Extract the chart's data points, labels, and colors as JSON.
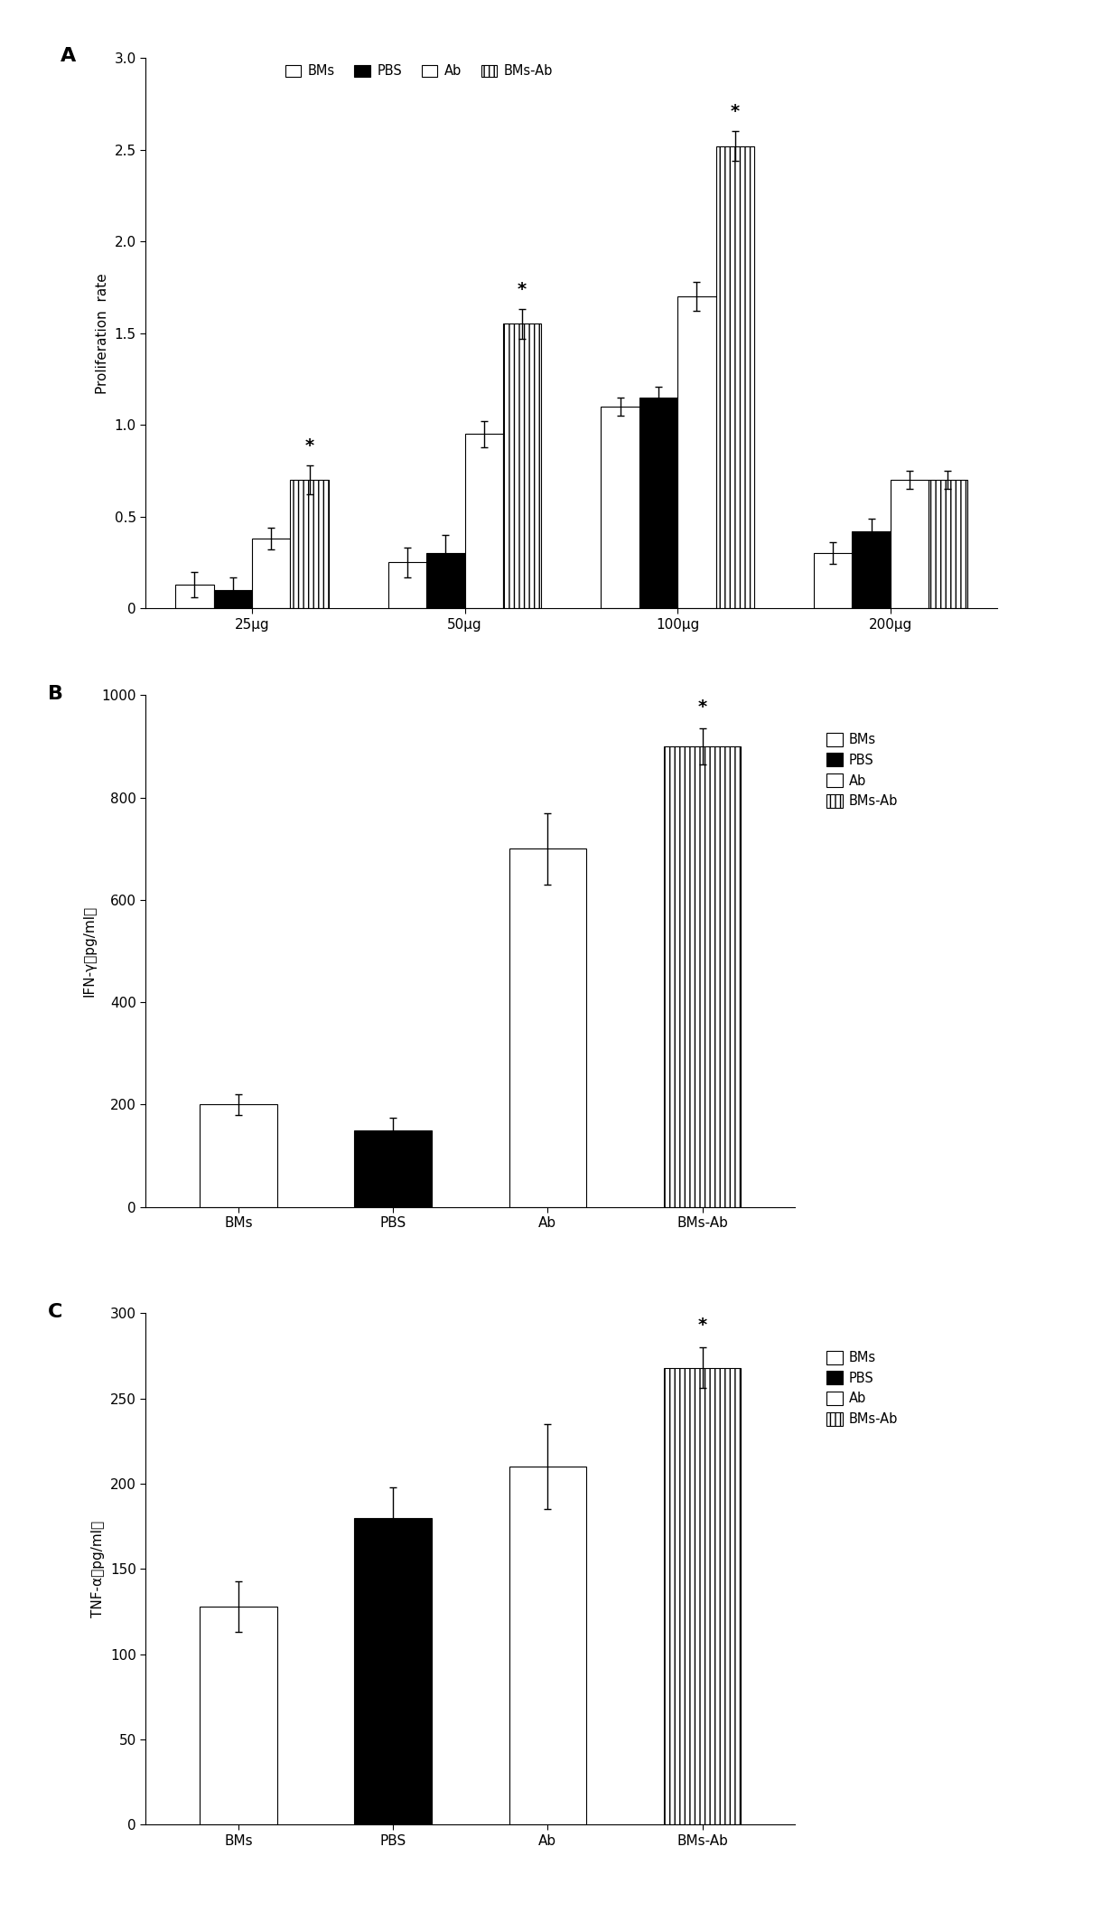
{
  "panel_A": {
    "groups": [
      "25μg",
      "50μg",
      "100μg",
      "200μg"
    ],
    "series": [
      "BMs",
      "PBS",
      "Ab",
      "BMs-Ab"
    ],
    "values_by_group": [
      [
        0.13,
        0.1,
        0.38,
        0.7
      ],
      [
        0.25,
        0.3,
        0.95,
        1.55
      ],
      [
        1.1,
        1.15,
        1.7,
        2.52
      ],
      [
        0.3,
        0.42,
        0.7,
        0.7
      ]
    ],
    "errors_by_group": [
      [
        0.07,
        0.07,
        0.06,
        0.08
      ],
      [
        0.08,
        0.1,
        0.07,
        0.08
      ],
      [
        0.05,
        0.06,
        0.08,
        0.08
      ],
      [
        0.06,
        0.07,
        0.05,
        0.05
      ]
    ],
    "star_groups": [
      0,
      1,
      2
    ],
    "star_series_idx": 3,
    "ylabel": "Proliferation  rate",
    "ylim": [
      0,
      3.0
    ],
    "yticks": [
      0,
      0.5,
      1.0,
      1.5,
      2.0,
      2.5,
      3.0
    ],
    "colors": [
      "white",
      "black",
      "white",
      "white"
    ],
    "hatches": [
      "",
      "",
      "",
      "|||"
    ],
    "label": "A"
  },
  "panel_B": {
    "groups": [
      "BMs",
      "PBS",
      "Ab",
      "BMs-Ab"
    ],
    "values": [
      200,
      150,
      700,
      900
    ],
    "errors": [
      20,
      25,
      70,
      35
    ],
    "star_idx": 3,
    "ylabel": "IFN-γ（pg/ml）",
    "ylim": [
      0,
      1000
    ],
    "yticks": [
      0,
      200,
      400,
      600,
      800,
      1000
    ],
    "colors": [
      "white",
      "black",
      "white",
      "white"
    ],
    "hatches": [
      "",
      "",
      "",
      "|||"
    ],
    "legend_labels": [
      "BMs",
      "PBS",
      "Ab",
      "BMs-Ab"
    ],
    "legend_colors": [
      "white",
      "black",
      "white",
      "white"
    ],
    "legend_hatches": [
      "",
      "",
      "",
      "|||"
    ],
    "label": "B"
  },
  "panel_C": {
    "groups": [
      "BMs",
      "PBS",
      "Ab",
      "BMs-Ab"
    ],
    "values": [
      128,
      180,
      210,
      268
    ],
    "errors": [
      15,
      18,
      25,
      12
    ],
    "star_idx": 3,
    "ylabel": "TNF-α（pg/ml）",
    "ylim": [
      0,
      300
    ],
    "yticks": [
      0,
      50,
      100,
      150,
      200,
      250,
      300
    ],
    "colors": [
      "white",
      "black",
      "white",
      "white"
    ],
    "hatches": [
      "",
      "",
      "",
      "|||"
    ],
    "legend_labels": [
      "BMs",
      "PBS",
      "Ab",
      "BMs-Ab"
    ],
    "legend_colors": [
      "white",
      "black",
      "white",
      "white"
    ],
    "legend_hatches": [
      "",
      "",
      "",
      "|||"
    ],
    "label": "C"
  },
  "figure_bg": "white",
  "bar_width": 0.18,
  "fontsize": 11
}
